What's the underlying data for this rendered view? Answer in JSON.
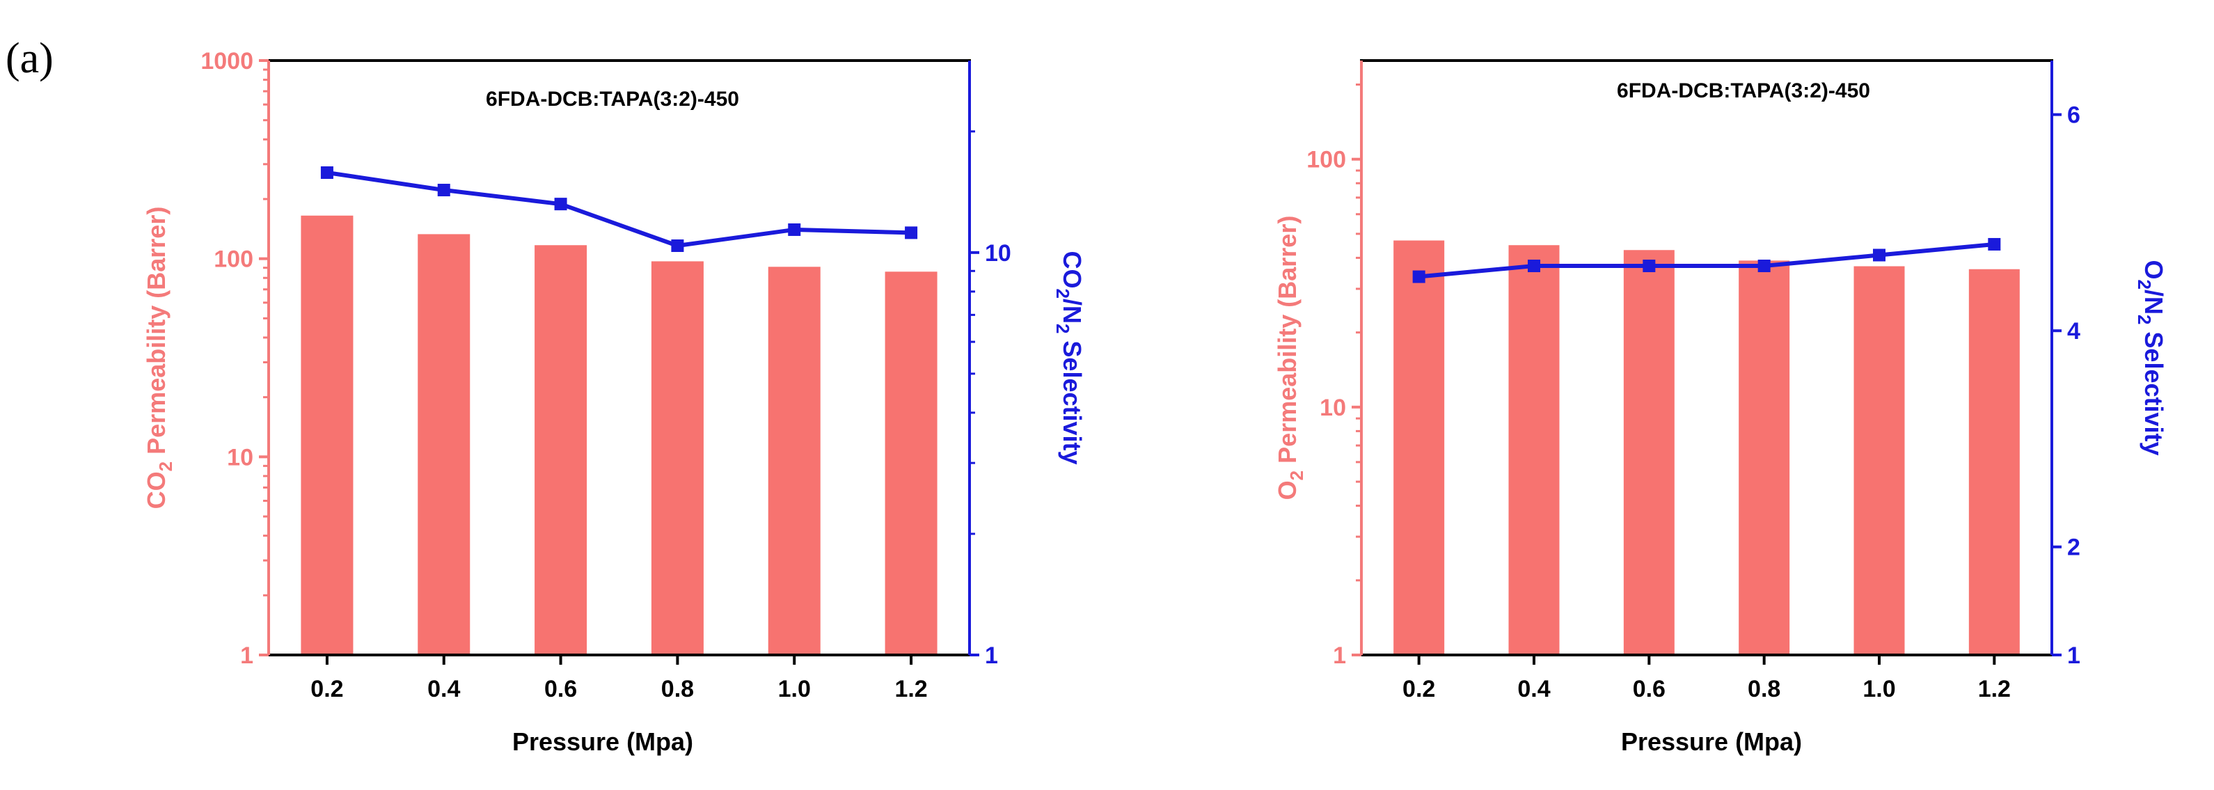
{
  "panel_label": "(a)",
  "colors": {
    "bar": "#f77370",
    "line": "#1a1adb",
    "axis": "#000000",
    "left_axis": "#f47a7a",
    "right_axis": "#1a1adb"
  },
  "chart_data": [
    {
      "type": "bar",
      "title": "6FDA-DCB:TAPA(3:2)-450",
      "categories": [
        "0.2",
        "0.4",
        "0.6",
        "0.8",
        "1.0",
        "1.2"
      ],
      "xlabel": "Pressure (Mpa)",
      "ylabel_prefix": "CO",
      "ylabel_sub": "2",
      "ylabel_mid": " Permeability ",
      "ylabel_unit": "(Barrer)",
      "yscale": "log",
      "ylim": [
        1,
        1000
      ],
      "yticks": [
        "1",
        "10",
        "100",
        "1000"
      ],
      "bar_values": [
        165,
        133,
        117,
        97,
        91,
        86
      ],
      "y2label_a": "CO",
      "y2label_b": "2",
      "y2label_c": "/N",
      "y2label_d": "2",
      "y2label_e": " Selectivity",
      "y2scale": "log",
      "y2lim": [
        1,
        30
      ],
      "y2ticks": [
        "1",
        "10"
      ],
      "line_values": [
        15.8,
        14.3,
        13.2,
        10.4,
        11.4,
        11.2
      ]
    },
    {
      "type": "bar",
      "title": "6FDA-DCB:TAPA(3:2)-450",
      "categories": [
        "0.2",
        "0.4",
        "0.6",
        "0.8",
        "1.0",
        "1.2"
      ],
      "xlabel": "Pressure (Mpa)",
      "ylabel_prefix": "O",
      "ylabel_sub": "2",
      "ylabel_mid": " Permeability ",
      "ylabel_unit": "(Barrer)",
      "yscale": "log",
      "ylim": [
        1,
        250
      ],
      "yticks": [
        "1",
        "10",
        "100"
      ],
      "bar_values": [
        47,
        45,
        43,
        39,
        37,
        36
      ],
      "y2label_a": "O",
      "y2label_b": "2",
      "y2label_c": "/N",
      "y2label_d": "2",
      "y2label_e": " Selectivity",
      "y2scale": "linear",
      "y2lim": [
        1,
        6.5
      ],
      "y2ticks": [
        "1",
        "2",
        "4",
        "6"
      ],
      "line_values": [
        4.5,
        4.6,
        4.6,
        4.6,
        4.7,
        4.8
      ]
    }
  ]
}
